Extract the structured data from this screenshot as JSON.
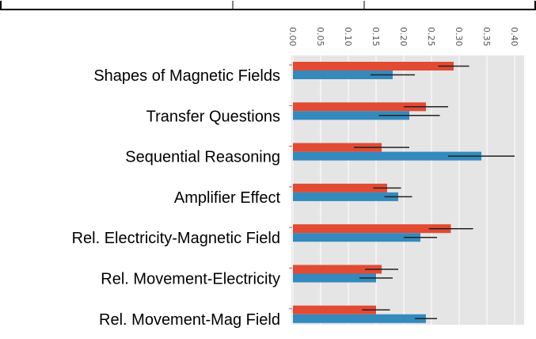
{
  "chart_data": {
    "type": "bar",
    "orientation": "horizontal",
    "title": "",
    "xlabel": "",
    "ylabel": "",
    "xlim": [
      0,
      0.42
    ],
    "ticks": [
      "0.00",
      "0.05",
      "0.10",
      "0.15",
      "0.20",
      "0.25",
      "0.30",
      "0.35",
      "0.40"
    ],
    "tick_values": [
      0.0,
      0.05,
      0.1,
      0.15,
      0.2,
      0.25,
      0.3,
      0.35,
      0.4
    ],
    "grid": true,
    "legend": "none",
    "categories": [
      "Shapes of Magnetic Fields",
      "Transfer Questions",
      "Sequential Reasoning",
      "Amplifier Effect",
      "Rel. Electricity-Magnetic Field",
      "Rel. Movement-Electricity",
      "Rel. Movement-Mag Field"
    ],
    "series": [
      {
        "color": "#e24a33",
        "values": [
          0.29,
          0.24,
          0.16,
          0.17,
          0.285,
          0.16,
          0.15
        ],
        "errors": [
          0.028,
          0.04,
          0.05,
          0.025,
          0.04,
          0.03,
          0.025
        ]
      },
      {
        "color": "#348abd",
        "values": [
          0.18,
          0.21,
          0.34,
          0.19,
          0.23,
          0.15,
          0.24
        ],
        "errors": [
          0.04,
          0.055,
          0.06,
          0.025,
          0.03,
          0.03,
          0.02
        ]
      }
    ],
    "colors": {
      "plot_background": "#e5e5e5",
      "grid": "#ffffff",
      "error_bar": "#222222"
    }
  }
}
